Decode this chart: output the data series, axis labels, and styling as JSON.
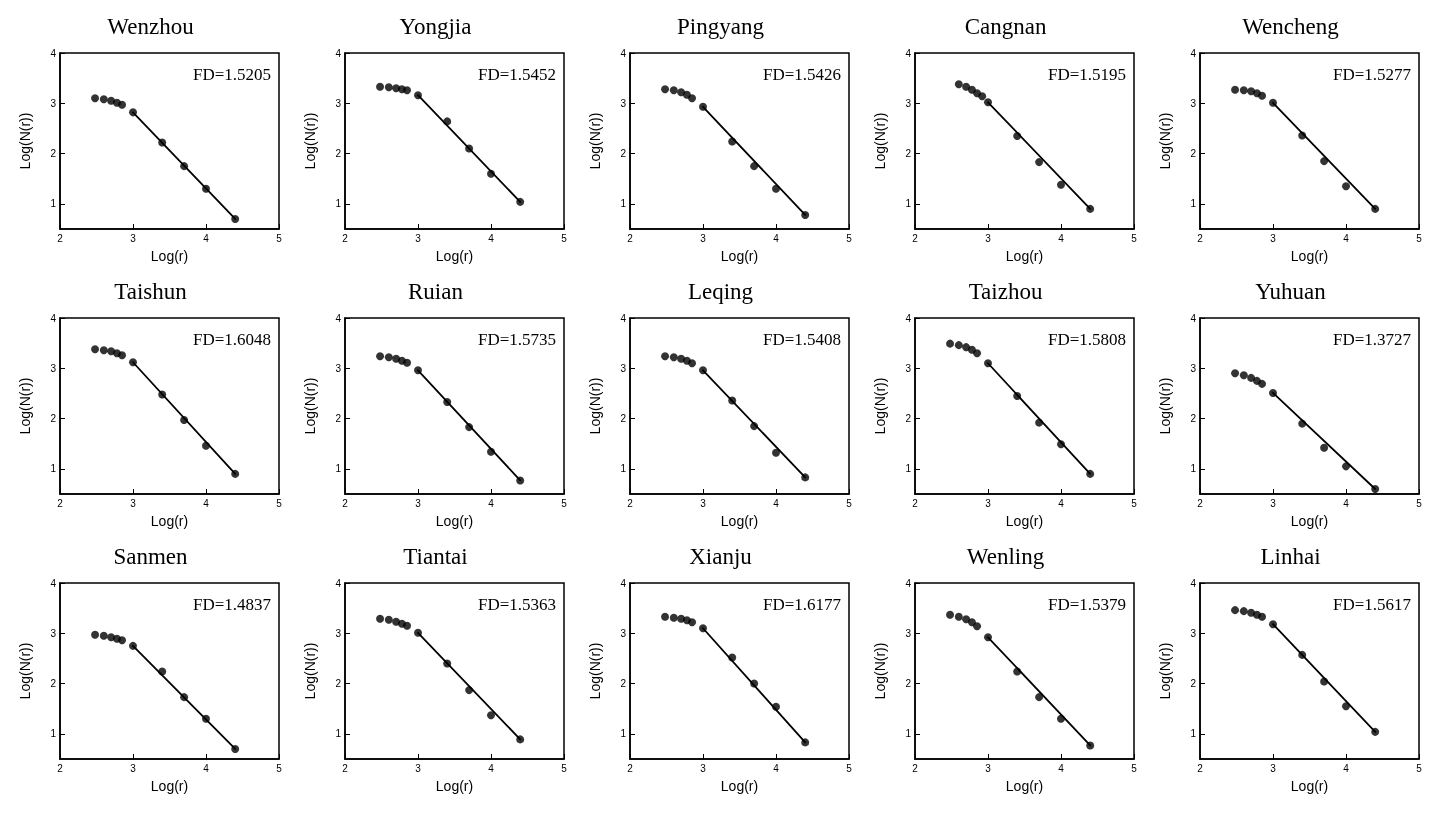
{
  "chart_data": [
    {
      "type": "scatter",
      "title": "Wenzhou",
      "xlabel": "Log(r)",
      "ylabel": "Log(N(r))",
      "xlim": [
        2,
        5
      ],
      "ylim": [
        0.5,
        4
      ],
      "xticks": [
        2,
        3,
        4,
        5
      ],
      "yticks": [
        1,
        2,
        3,
        4
      ],
      "annotations": [
        "FD=1.5205"
      ],
      "series": [
        {
          "type": "scatter",
          "marker": "circle",
          "color": "#000000",
          "x": [
            2.48,
            2.6,
            2.7,
            2.78,
            2.85,
            3.0,
            3.4,
            3.7,
            4.0,
            4.4
          ],
          "values": [
            3.1,
            3.08,
            3.05,
            3.01,
            2.97,
            2.82,
            2.22,
            1.75,
            1.3,
            0.7
          ]
        },
        {
          "type": "line",
          "marker": "none",
          "color": "#000000",
          "x": [
            3.0,
            4.4
          ],
          "values": [
            2.82,
            0.7
          ]
        }
      ]
    },
    {
      "type": "scatter",
      "title": "Yongjia",
      "xlabel": "Log(r)",
      "ylabel": "Log(N(r))",
      "xlim": [
        2,
        5
      ],
      "ylim": [
        0.5,
        4
      ],
      "xticks": [
        2,
        3,
        4,
        5
      ],
      "yticks": [
        1,
        2,
        3,
        4
      ],
      "annotations": [
        "FD=1.5452"
      ],
      "series": [
        {
          "type": "scatter",
          "marker": "circle",
          "color": "#000000",
          "x": [
            2.48,
            2.6,
            2.7,
            2.78,
            2.85,
            3.0,
            3.4,
            3.7,
            4.0,
            4.4
          ],
          "values": [
            3.33,
            3.32,
            3.3,
            3.28,
            3.26,
            3.16,
            2.64,
            2.1,
            1.6,
            1.04
          ]
        },
        {
          "type": "line",
          "marker": "none",
          "color": "#000000",
          "x": [
            3.0,
            4.4
          ],
          "values": [
            3.16,
            1.04
          ]
        }
      ]
    },
    {
      "type": "scatter",
      "title": "Pingyang",
      "xlabel": "Log(r)",
      "ylabel": "Log(N(r))",
      "xlim": [
        2,
        5
      ],
      "ylim": [
        0.5,
        4
      ],
      "xticks": [
        2,
        3,
        4,
        5
      ],
      "yticks": [
        1,
        2,
        3,
        4
      ],
      "annotations": [
        "FD=1.5426"
      ],
      "series": [
        {
          "type": "scatter",
          "marker": "circle",
          "color": "#000000",
          "x": [
            2.48,
            2.6,
            2.7,
            2.78,
            2.85,
            3.0,
            3.4,
            3.7,
            4.0,
            4.4
          ],
          "values": [
            3.28,
            3.26,
            3.22,
            3.17,
            3.1,
            2.93,
            2.24,
            1.75,
            1.3,
            0.78
          ]
        },
        {
          "type": "line",
          "marker": "none",
          "color": "#000000",
          "x": [
            3.0,
            4.4
          ],
          "values": [
            2.93,
            0.78
          ]
        }
      ]
    },
    {
      "type": "scatter",
      "title": "Cangnan",
      "xlabel": "Log(r)",
      "ylabel": "Log(N(r))",
      "xlim": [
        2,
        5
      ],
      "ylim": [
        0.5,
        4
      ],
      "xticks": [
        2,
        3,
        4,
        5
      ],
      "yticks": [
        1,
        2,
        3,
        4
      ],
      "annotations": [
        "FD=1.5195"
      ],
      "series": [
        {
          "type": "scatter",
          "marker": "circle",
          "color": "#000000",
          "x": [
            2.6,
            2.7,
            2.78,
            2.85,
            2.92,
            3.0,
            3.4,
            3.7,
            4.0,
            4.4
          ],
          "values": [
            3.38,
            3.33,
            3.27,
            3.2,
            3.14,
            3.02,
            2.35,
            1.83,
            1.38,
            0.9
          ]
        },
        {
          "type": "line",
          "marker": "none",
          "color": "#000000",
          "x": [
            3.0,
            4.4
          ],
          "values": [
            3.02,
            0.9
          ]
        }
      ]
    },
    {
      "type": "scatter",
      "title": "Wencheng",
      "xlabel": "Log(r)",
      "ylabel": "Log(N(r))",
      "xlim": [
        2,
        5
      ],
      "ylim": [
        0.5,
        4
      ],
      "xticks": [
        2,
        3,
        4,
        5
      ],
      "yticks": [
        1,
        2,
        3,
        4
      ],
      "annotations": [
        "FD=1.5277"
      ],
      "series": [
        {
          "type": "scatter",
          "marker": "circle",
          "color": "#000000",
          "x": [
            2.48,
            2.6,
            2.7,
            2.78,
            2.85,
            3.0,
            3.4,
            3.7,
            4.0,
            4.4
          ],
          "values": [
            3.27,
            3.26,
            3.24,
            3.2,
            3.15,
            3.01,
            2.36,
            1.85,
            1.35,
            0.9
          ]
        },
        {
          "type": "line",
          "marker": "none",
          "color": "#000000",
          "x": [
            3.0,
            4.4
          ],
          "values": [
            3.01,
            0.9
          ]
        }
      ]
    },
    {
      "type": "scatter",
      "title": "Taishun",
      "xlabel": "Log(r)",
      "ylabel": "Log(N(r))",
      "xlim": [
        2,
        5
      ],
      "ylim": [
        0.5,
        4
      ],
      "xticks": [
        2,
        3,
        4,
        5
      ],
      "yticks": [
        1,
        2,
        3,
        4
      ],
      "annotations": [
        "FD=1.6048"
      ],
      "series": [
        {
          "type": "scatter",
          "marker": "circle",
          "color": "#000000",
          "x": [
            2.48,
            2.6,
            2.7,
            2.78,
            2.85,
            3.0,
            3.4,
            3.7,
            4.0,
            4.4
          ],
          "values": [
            3.38,
            3.36,
            3.34,
            3.3,
            3.26,
            3.12,
            2.48,
            1.97,
            1.46,
            0.9
          ]
        },
        {
          "type": "line",
          "marker": "none",
          "color": "#000000",
          "x": [
            3.0,
            4.4
          ],
          "values": [
            3.12,
            0.9
          ]
        }
      ]
    },
    {
      "type": "scatter",
      "title": "Ruian",
      "xlabel": "Log(r)",
      "ylabel": "Log(N(r))",
      "xlim": [
        2,
        5
      ],
      "ylim": [
        0.5,
        4
      ],
      "xticks": [
        2,
        3,
        4,
        5
      ],
      "yticks": [
        1,
        2,
        3,
        4
      ],
      "annotations": [
        "FD=1.5735"
      ],
      "series": [
        {
          "type": "scatter",
          "marker": "circle",
          "color": "#000000",
          "x": [
            2.48,
            2.6,
            2.7,
            2.78,
            2.85,
            3.0,
            3.4,
            3.7,
            4.0,
            4.4
          ],
          "values": [
            3.24,
            3.22,
            3.19,
            3.15,
            3.11,
            2.96,
            2.33,
            1.83,
            1.34,
            0.77
          ]
        },
        {
          "type": "line",
          "marker": "none",
          "color": "#000000",
          "x": [
            3.0,
            4.4
          ],
          "values": [
            2.96,
            0.77
          ]
        }
      ]
    },
    {
      "type": "scatter",
      "title": "Leqing",
      "xlabel": "Log(r)",
      "ylabel": "Log(N(r))",
      "xlim": [
        2,
        5
      ],
      "ylim": [
        0.5,
        4
      ],
      "xticks": [
        2,
        3,
        4,
        5
      ],
      "yticks": [
        1,
        2,
        3,
        4
      ],
      "annotations": [
        "FD=1.5408"
      ],
      "series": [
        {
          "type": "scatter",
          "marker": "circle",
          "color": "#000000",
          "x": [
            2.48,
            2.6,
            2.7,
            2.78,
            2.85,
            3.0,
            3.4,
            3.7,
            4.0,
            4.4
          ],
          "values": [
            3.24,
            3.22,
            3.19,
            3.15,
            3.1,
            2.96,
            2.36,
            1.85,
            1.32,
            0.83
          ]
        },
        {
          "type": "line",
          "marker": "none",
          "color": "#000000",
          "x": [
            3.0,
            4.4
          ],
          "values": [
            2.96,
            0.83
          ]
        }
      ]
    },
    {
      "type": "scatter",
      "title": "Taizhou",
      "xlabel": "Log(r)",
      "ylabel": "Log(N(r))",
      "xlim": [
        2,
        5
      ],
      "ylim": [
        0.5,
        4
      ],
      "xticks": [
        2,
        3,
        4,
        5
      ],
      "yticks": [
        1,
        2,
        3,
        4
      ],
      "annotations": [
        "FD=1.5808"
      ],
      "series": [
        {
          "type": "scatter",
          "marker": "circle",
          "color": "#000000",
          "x": [
            2.48,
            2.6,
            2.7,
            2.78,
            2.85,
            3.0,
            3.4,
            3.7,
            4.0,
            4.4
          ],
          "values": [
            3.49,
            3.46,
            3.42,
            3.37,
            3.3,
            3.1,
            2.45,
            1.92,
            1.49,
            0.9
          ]
        },
        {
          "type": "line",
          "marker": "none",
          "color": "#000000",
          "x": [
            3.0,
            4.4
          ],
          "values": [
            3.1,
            0.9
          ]
        }
      ]
    },
    {
      "type": "scatter",
      "title": "Yuhuan",
      "xlabel": "Log(r)",
      "ylabel": "Log(N(r))",
      "xlim": [
        2,
        5
      ],
      "ylim": [
        0.5,
        4
      ],
      "xticks": [
        2,
        3,
        4,
        5
      ],
      "yticks": [
        1,
        2,
        3,
        4
      ],
      "annotations": [
        "FD=1.3727"
      ],
      "series": [
        {
          "type": "scatter",
          "marker": "circle",
          "color": "#000000",
          "x": [
            2.48,
            2.6,
            2.7,
            2.78,
            2.85,
            3.0,
            3.4,
            3.7,
            4.0,
            4.4
          ],
          "values": [
            2.9,
            2.86,
            2.81,
            2.75,
            2.69,
            2.51,
            1.9,
            1.42,
            1.05,
            0.6
          ]
        },
        {
          "type": "line",
          "marker": "none",
          "color": "#000000",
          "x": [
            3.0,
            4.4
          ],
          "values": [
            2.51,
            0.6
          ]
        }
      ]
    },
    {
      "type": "scatter",
      "title": "Sanmen",
      "xlabel": "Log(r)",
      "ylabel": "Log(N(r))",
      "xlim": [
        2,
        5
      ],
      "ylim": [
        0.5,
        4
      ],
      "xticks": [
        2,
        3,
        4,
        5
      ],
      "yticks": [
        1,
        2,
        3,
        4
      ],
      "annotations": [
        "FD=1.4837"
      ],
      "series": [
        {
          "type": "scatter",
          "marker": "circle",
          "color": "#000000",
          "x": [
            2.48,
            2.6,
            2.7,
            2.78,
            2.85,
            3.0,
            3.4,
            3.7,
            4.0,
            4.4
          ],
          "values": [
            2.97,
            2.95,
            2.92,
            2.89,
            2.86,
            2.75,
            2.24,
            1.73,
            1.3,
            0.7
          ]
        },
        {
          "type": "line",
          "marker": "none",
          "color": "#000000",
          "x": [
            3.0,
            4.4
          ],
          "values": [
            2.75,
            0.7
          ]
        }
      ]
    },
    {
      "type": "scatter",
      "title": "Tiantai",
      "xlabel": "Log(r)",
      "ylabel": "Log(N(r))",
      "xlim": [
        2,
        5
      ],
      "ylim": [
        0.5,
        4
      ],
      "xticks": [
        2,
        3,
        4,
        5
      ],
      "yticks": [
        1,
        2,
        3,
        4
      ],
      "annotations": [
        "FD=1.5363"
      ],
      "series": [
        {
          "type": "scatter",
          "marker": "circle",
          "color": "#000000",
          "x": [
            2.48,
            2.6,
            2.7,
            2.78,
            2.85,
            3.0,
            3.4,
            3.7,
            4.0,
            4.4
          ],
          "values": [
            3.29,
            3.27,
            3.23,
            3.19,
            3.15,
            3.01,
            2.4,
            1.87,
            1.37,
            0.89
          ]
        },
        {
          "type": "line",
          "marker": "none",
          "color": "#000000",
          "x": [
            3.0,
            4.4
          ],
          "values": [
            3.01,
            0.89
          ]
        }
      ]
    },
    {
      "type": "scatter",
      "title": "Xianju",
      "xlabel": "Log(r)",
      "ylabel": "Log(N(r))",
      "xlim": [
        2,
        5
      ],
      "ylim": [
        0.5,
        4
      ],
      "xticks": [
        2,
        3,
        4,
        5
      ],
      "yticks": [
        1,
        2,
        3,
        4
      ],
      "annotations": [
        "FD=1.6177"
      ],
      "series": [
        {
          "type": "scatter",
          "marker": "circle",
          "color": "#000000",
          "x": [
            2.48,
            2.6,
            2.7,
            2.78,
            2.85,
            3.0,
            3.4,
            3.7,
            4.0,
            4.4
          ],
          "values": [
            3.33,
            3.31,
            3.29,
            3.26,
            3.22,
            3.1,
            2.52,
            2.0,
            1.54,
            0.83
          ]
        },
        {
          "type": "line",
          "marker": "none",
          "color": "#000000",
          "x": [
            3.0,
            4.4
          ],
          "values": [
            3.1,
            0.83
          ]
        }
      ]
    },
    {
      "type": "scatter",
      "title": "Wenling",
      "xlabel": "Log(r)",
      "ylabel": "Log(N(r))",
      "xlim": [
        2,
        5
      ],
      "ylim": [
        0.5,
        4
      ],
      "xticks": [
        2,
        3,
        4,
        5
      ],
      "yticks": [
        1,
        2,
        3,
        4
      ],
      "annotations": [
        "FD=1.5379"
      ],
      "series": [
        {
          "type": "scatter",
          "marker": "circle",
          "color": "#000000",
          "x": [
            2.48,
            2.6,
            2.7,
            2.78,
            2.85,
            3.0,
            3.4,
            3.7,
            4.0,
            4.4
          ],
          "values": [
            3.37,
            3.33,
            3.28,
            3.22,
            3.14,
            2.92,
            2.24,
            1.73,
            1.3,
            0.77
          ]
        },
        {
          "type": "line",
          "marker": "none",
          "color": "#000000",
          "x": [
            3.0,
            4.4
          ],
          "values": [
            2.92,
            0.77
          ]
        }
      ]
    },
    {
      "type": "scatter",
      "title": "Linhai",
      "xlabel": "Log(r)",
      "ylabel": "Log(N(r))",
      "xlim": [
        2,
        5
      ],
      "ylim": [
        0.5,
        4
      ],
      "xticks": [
        2,
        3,
        4,
        5
      ],
      "yticks": [
        1,
        2,
        3,
        4
      ],
      "annotations": [
        "FD=1.5617"
      ],
      "series": [
        {
          "type": "scatter",
          "marker": "circle",
          "color": "#000000",
          "x": [
            2.48,
            2.6,
            2.7,
            2.78,
            2.85,
            3.0,
            3.4,
            3.7,
            4.0,
            4.4
          ],
          "values": [
            3.46,
            3.44,
            3.41,
            3.37,
            3.33,
            3.18,
            2.57,
            2.04,
            1.55,
            1.04
          ]
        },
        {
          "type": "line",
          "marker": "none",
          "color": "#000000",
          "x": [
            3.0,
            4.4
          ],
          "values": [
            3.18,
            1.04
          ]
        }
      ]
    }
  ]
}
